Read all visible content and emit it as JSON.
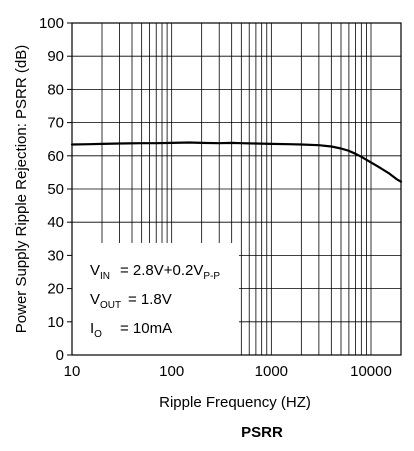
{
  "chart_data": {
    "type": "line",
    "title": "PSRR",
    "xlabel": "Ripple Frequency (HZ)",
    "ylabel": "Power Supply Ripple Rejection: PSRR (dB)",
    "x_scale": "log",
    "xlim": [
      10,
      20000
    ],
    "ylim": [
      0,
      100
    ],
    "grid": true,
    "x_ticks": [
      {
        "value": 10,
        "label": "10"
      },
      {
        "value": 100,
        "label": "100"
      },
      {
        "value": 1000,
        "label": "1000"
      },
      {
        "value": 10000,
        "label": "10000"
      }
    ],
    "y_ticks": [
      {
        "value": 0,
        "label": "0"
      },
      {
        "value": 10,
        "label": "10"
      },
      {
        "value": 20,
        "label": "20"
      },
      {
        "value": 30,
        "label": "30"
      },
      {
        "value": 40,
        "label": "40"
      },
      {
        "value": 50,
        "label": "50"
      },
      {
        "value": 60,
        "label": "60"
      },
      {
        "value": 70,
        "label": "70"
      },
      {
        "value": 80,
        "label": "80"
      },
      {
        "value": 90,
        "label": "90"
      },
      {
        "value": 100,
        "label": "100"
      }
    ],
    "series": [
      {
        "color": "#000000",
        "x": [
          10,
          15,
          20,
          30,
          50,
          70,
          100,
          150,
          200,
          300,
          400,
          500,
          700,
          1000,
          1500,
          2000,
          3000,
          4000,
          5000,
          6000,
          7000,
          8000,
          10000,
          12000,
          15000,
          18000,
          20000
        ],
        "y": [
          63.4,
          63.5,
          63.6,
          63.7,
          63.8,
          63.8,
          63.9,
          64.0,
          63.9,
          63.8,
          63.9,
          63.8,
          63.7,
          63.6,
          63.5,
          63.4,
          63.2,
          62.8,
          62.2,
          61.5,
          60.6,
          59.7,
          58.0,
          56.6,
          54.8,
          53.0,
          52.2
        ]
      }
    ],
    "annotations": {
      "vin": {
        "main": "V",
        "sub": "IN",
        "value": "= 2.8V+0.2V",
        "value_sub": "P-P"
      },
      "vout": {
        "main": "V",
        "sub": "OUT",
        "value": "= 1.8V"
      },
      "io": {
        "main": "I",
        "sub": "O",
        "value": "= 10mA"
      }
    }
  }
}
